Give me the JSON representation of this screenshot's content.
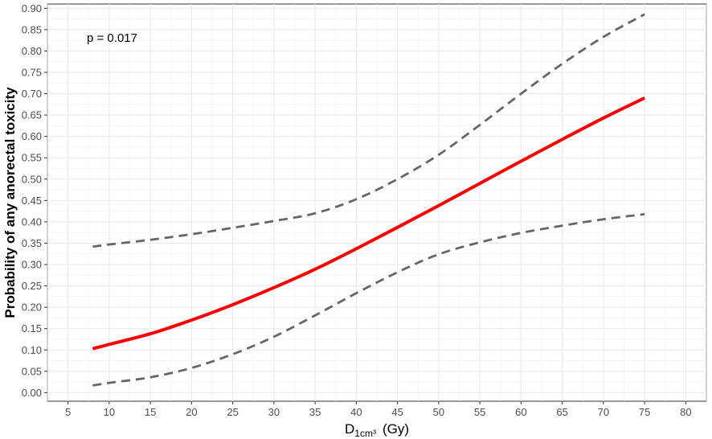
{
  "chart_data": {
    "type": "line",
    "title": "",
    "xlabel": "D",
    "xlabel_sub": "1cm³",
    "xlabel_unit": "(Gy)",
    "ylabel": "Probability of any anorectal toxicity",
    "xlim": [
      2.5,
      82.5
    ],
    "ylim": [
      -0.02,
      0.91
    ],
    "x_ticks": [
      5,
      10,
      15,
      20,
      25,
      30,
      35,
      40,
      45,
      50,
      55,
      60,
      65,
      70,
      75,
      80
    ],
    "y_ticks": [
      0.0,
      0.05,
      0.1,
      0.15,
      0.2,
      0.25,
      0.3,
      0.35,
      0.4,
      0.45,
      0.5,
      0.55,
      0.6,
      0.65,
      0.7,
      0.75,
      0.8,
      0.85,
      0.9
    ],
    "y_tick_labels": [
      "0.00",
      "0.05",
      "0.10",
      "0.15",
      "0.20",
      "0.25",
      "0.30",
      "0.35",
      "0.40",
      "0.45",
      "0.50",
      "0.55",
      "0.60",
      "0.65",
      "0.70",
      "0.75",
      "0.80",
      "0.85",
      "0.90"
    ],
    "grid": true,
    "annotation": "p = 0.017",
    "series": [
      {
        "role": "estimate",
        "color": "#ff0000",
        "dash": false,
        "x": [
          8,
          10,
          15,
          20,
          25,
          30,
          35,
          40,
          45,
          50,
          55,
          60,
          65,
          70,
          75
        ],
        "values": [
          0.103,
          0.113,
          0.138,
          0.17,
          0.206,
          0.246,
          0.289,
          0.337,
          0.387,
          0.438,
          0.49,
          0.542,
          0.593,
          0.643,
          0.69
        ]
      },
      {
        "role": "upper-ci",
        "color": "#666666",
        "dash": true,
        "x": [
          8,
          10,
          15,
          20,
          25,
          30,
          35,
          40,
          45,
          50,
          55,
          60,
          65,
          70,
          75
        ],
        "values": [
          0.342,
          0.347,
          0.358,
          0.371,
          0.386,
          0.402,
          0.42,
          0.453,
          0.5,
          0.557,
          0.627,
          0.7,
          0.77,
          0.833,
          0.886
        ]
      },
      {
        "role": "lower-ci",
        "color": "#666666",
        "dash": true,
        "x": [
          8,
          10,
          15,
          20,
          25,
          30,
          35,
          40,
          45,
          50,
          55,
          60,
          65,
          70,
          75
        ],
        "values": [
          0.017,
          0.023,
          0.036,
          0.058,
          0.09,
          0.131,
          0.181,
          0.233,
          0.282,
          0.324,
          0.352,
          0.374,
          0.391,
          0.406,
          0.418
        ]
      }
    ]
  }
}
